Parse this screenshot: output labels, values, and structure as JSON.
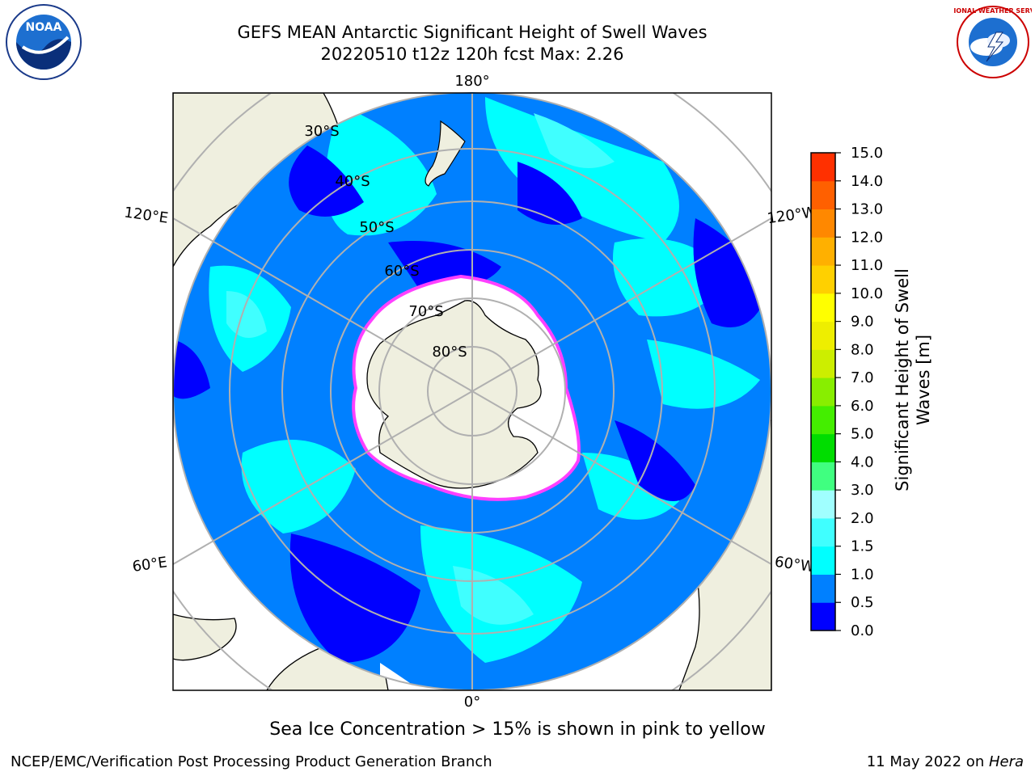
{
  "header": {
    "title_line1": "GEFS MEAN Antarctic Significant Height of Swell Waves",
    "title_line2": "20220510 t12z 120h fcst   Max: 2.26"
  },
  "map": {
    "projection": "south polar stereographic",
    "lon_labels": [
      {
        "text": "180°"
      },
      {
        "text": "120°E"
      },
      {
        "text": "120°W"
      },
      {
        "text": "60°E"
      },
      {
        "text": "60°W"
      },
      {
        "text": "0°"
      }
    ],
    "lat_labels": [
      "30°S",
      "40°S",
      "50°S",
      "60°S",
      "70°S",
      "80°S"
    ]
  },
  "colorbar": {
    "label_line1": "Significant Height of Swell",
    "label_line2": "Waves [m]",
    "ticks": [
      "0.0",
      "0.5",
      "1.0",
      "1.5",
      "2.0",
      "3.0",
      "4.0",
      "5.0",
      "6.0",
      "7.0",
      "8.0",
      "9.0",
      "10.0",
      "11.0",
      "12.0",
      "13.0",
      "14.0",
      "15.0"
    ],
    "colors": [
      "#0000ff",
      "#0080ff",
      "#00ffff",
      "#40ffff",
      "#a0ffff",
      "#40ff80",
      "#00dd00",
      "#44ee00",
      "#88ee00",
      "#ccee00",
      "#eeee00",
      "#ffff00",
      "#ffd000",
      "#ffb000",
      "#ff8800",
      "#ff6000",
      "#ff3000",
      "#ff0000"
    ]
  },
  "colors": {
    "land": "#efefdf",
    "deep_blue": "#0000ff",
    "mid_blue": "#0080ff",
    "cyan": "#00ffff",
    "light_cyan": "#40ffff",
    "ice_edge": "#ff40ff",
    "grid": "#b0b0b0"
  },
  "footer": {
    "note": "Sea Ice Concentration > 15% is shown in pink to yellow",
    "left": "NCEP/EMC/Verification Post Processing Product Generation Branch",
    "right_prefix": "11 May 2022 on ",
    "right_host": "Hera"
  },
  "logos": {
    "noaa_text": "NOAA",
    "nws_text": "NATIONAL WEATHER SERVICE"
  }
}
